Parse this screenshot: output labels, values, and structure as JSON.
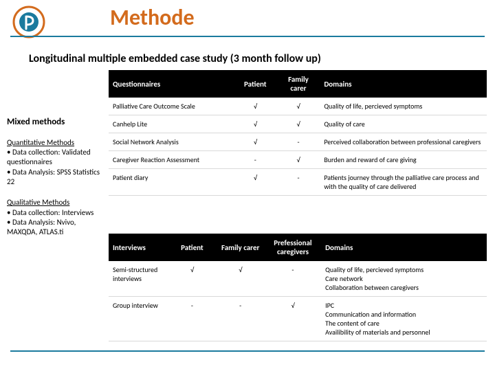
{
  "title": "Methode",
  "subtitle": "Longitudinal multiple embedded case study (3 month follow up)",
  "colors": {
    "accent_orange": "#d36b1d",
    "rule_blue": "#1a7a9e",
    "header_bg": "#000000",
    "header_fg": "#ffffff",
    "cell_border": "#d9d9d9"
  },
  "sidebar": {
    "heading": "Mixed methods",
    "quant": {
      "title": "Quantitative Methods",
      "li1": "Data collection: Validated questionnaires",
      "li2": "Data Analysis: SPSS Statistics 22"
    },
    "qual": {
      "title": "Qualitative Methods",
      "li1": "Data collection: Interviews",
      "li2": "Data Analysis: Nvivo, MAXQDA, ATLAS.ti"
    }
  },
  "table1": {
    "headers": {
      "c0": "Questionnaires",
      "c1": "Patient",
      "c2": "Family carer",
      "c3": "Domains"
    },
    "rows": [
      {
        "c0": "Palliative Care Outcome Scale",
        "c1": "√",
        "c2": "√",
        "c3": "Quality of life, percieved symptoms"
      },
      {
        "c0": "Canhelp Lite",
        "c1": "√",
        "c2": "√",
        "c3": "Quality of care"
      },
      {
        "c0": "Social Network Analysis",
        "c1": "√",
        "c2": "-",
        "c3": "Perceived collaboration between professional caregivers"
      },
      {
        "c0": "Caregiver Reaction Assessment",
        "c1": "-",
        "c2": "√",
        "c3": "Burden and reward of care giving"
      },
      {
        "c0": "Patient diary",
        "c1": "√",
        "c2": "-",
        "c3": "Patients journey through the palliative care process and with the quality of care delivered"
      }
    ]
  },
  "table2": {
    "headers": {
      "c0": "Interviews",
      "c1": "Patient",
      "c2": "Family carer",
      "c3": "Prefessional caregivers",
      "c4": "Domains"
    },
    "rows": [
      {
        "c0": "Semi-structured interviews",
        "c1": "√",
        "c2": "√",
        "c3": "-",
        "c4": "Quality of life, percieved symptoms\nCare network\nCollaboration between caregivers"
      },
      {
        "c0": "Group interview",
        "c1": "-",
        "c2": "-",
        "c3": "√",
        "c4": "IPC\nCommunication and information\nThe content of care\nAvailibility of materials and personnel"
      }
    ]
  }
}
